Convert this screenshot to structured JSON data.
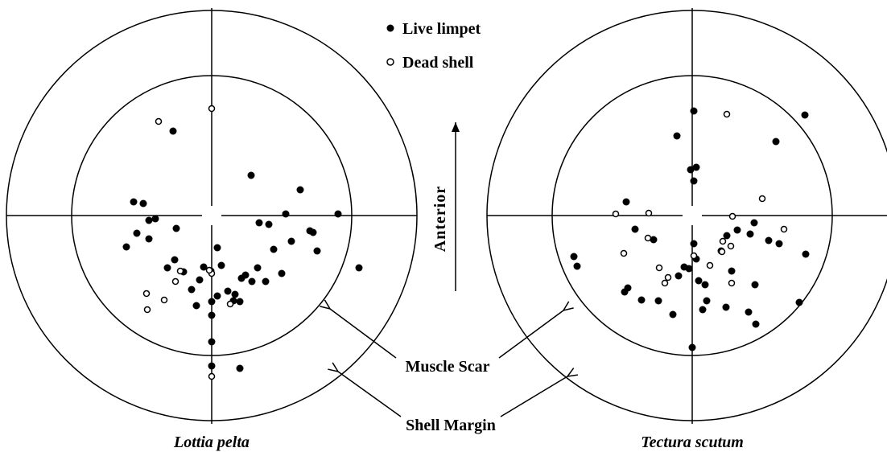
{
  "legend": {
    "live": "Live limpet",
    "dead": "Dead shell"
  },
  "direction": "Anterior",
  "labels": {
    "muscle_scar": "Muscle Scar",
    "shell_margin": "Shell Margin"
  },
  "panels": [
    {
      "species": "Lottia pelta"
    },
    {
      "species": "Tectura scutum"
    }
  ]
}
